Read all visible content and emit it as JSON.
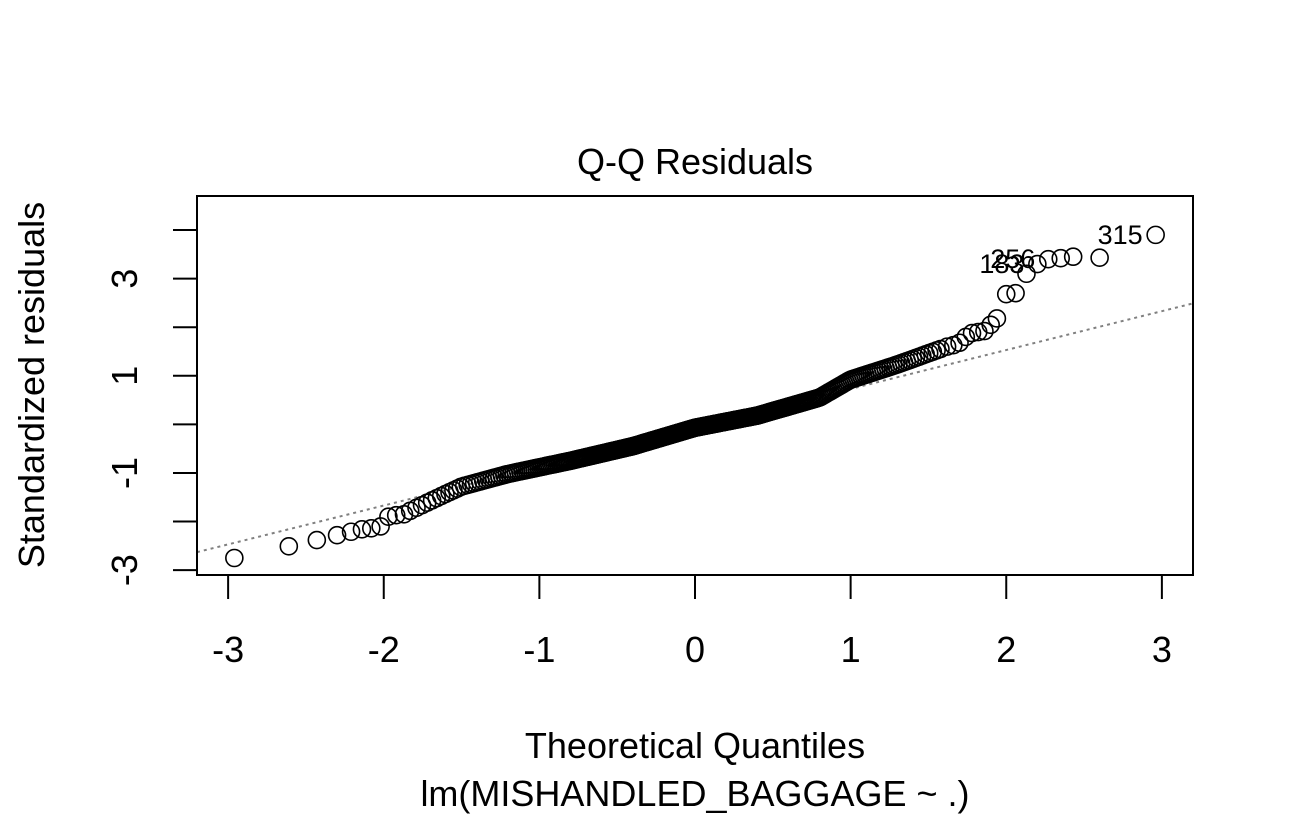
{
  "chart_data": {
    "type": "scatter",
    "title": "Q-Q Residuals",
    "xlabel": "Theoretical Quantiles",
    "sub_label": "lm(MISHANDLED_BAGGAGE ~ .)",
    "ylabel": "Standardized residuals",
    "xlim": [
      -3.2,
      3.2
    ],
    "ylim": [
      -3.1,
      4.7
    ],
    "x_ticks": [
      -3,
      -2,
      -1,
      0,
      1,
      2,
      3
    ],
    "x_tick_labels": [
      "-3",
      "-2",
      "-1",
      "0",
      "1",
      "2",
      "3"
    ],
    "y_ticks": [
      -3,
      -2,
      -1,
      0,
      1,
      2,
      3,
      4
    ],
    "y_tick_labels": [
      {
        "value": -3,
        "label": "-3"
      },
      {
        "value": -1,
        "label": "-1"
      },
      {
        "value": 1,
        "label": "1"
      },
      {
        "value": 3,
        "label": "3"
      }
    ],
    "reference_line": {
      "style": "dotted",
      "color": "#808080",
      "slope": 0.8,
      "intercept": -0.07
    },
    "points": {
      "n": 340,
      "tail_points": [
        [
          -2.96,
          -2.75
        ],
        [
          -2.61,
          -2.51
        ],
        [
          -2.43,
          -2.38
        ],
        [
          -2.3,
          -2.28
        ],
        [
          -2.21,
          -2.21
        ],
        [
          -2.14,
          -2.16
        ],
        [
          -2.08,
          -2.14
        ],
        [
          -2.02,
          -2.1
        ],
        [
          -1.97,
          -1.9
        ],
        [
          -1.92,
          -1.87
        ],
        [
          -1.87,
          -1.85
        ],
        [
          -1.83,
          -1.78
        ],
        [
          1.62,
          1.6
        ],
        [
          1.66,
          1.63
        ],
        [
          1.7,
          1.68
        ],
        [
          1.74,
          1.8
        ],
        [
          1.78,
          1.88
        ],
        [
          1.82,
          1.9
        ],
        [
          1.86,
          1.92
        ],
        [
          1.9,
          2.05
        ],
        [
          1.94,
          2.18
        ],
        [
          2.0,
          2.68
        ],
        [
          2.06,
          2.7
        ],
        [
          2.13,
          3.1
        ],
        [
          2.2,
          3.3
        ],
        [
          2.27,
          3.4
        ],
        [
          2.35,
          3.42
        ],
        [
          2.43,
          3.45
        ],
        [
          2.6,
          3.43
        ],
        [
          2.96,
          3.9
        ]
      ]
    },
    "point_labels": [
      {
        "text": "315",
        "x": 2.96,
        "y": 3.9
      },
      {
        "text": "183",
        "x": 2.2,
        "y": 3.3
      },
      {
        "text": "256",
        "x": 2.27,
        "y": 3.4
      }
    ]
  }
}
